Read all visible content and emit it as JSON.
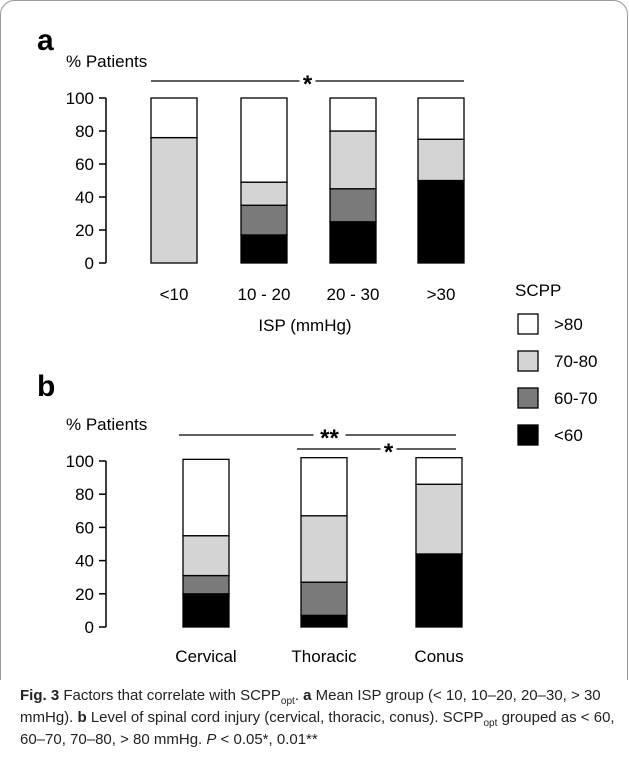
{
  "chart_data": [
    {
      "type": "bar",
      "stacked": true,
      "panel_label": "a",
      "ylabel": "% Patients",
      "xlabel": "ISP (mmHg)",
      "ylim": [
        0,
        100
      ],
      "yticks": [
        0,
        20,
        40,
        60,
        80,
        100
      ],
      "categories": [
        "<10",
        "10 - 20",
        "20 - 30",
        ">30"
      ],
      "series": [
        {
          "name": "<60",
          "color": "#000000",
          "values": [
            0,
            17,
            25,
            50
          ]
        },
        {
          "name": "60-70",
          "color": "#7a7a7a",
          "values": [
            0,
            18,
            20,
            0
          ]
        },
        {
          "name": "70-80",
          "color": "#d4d4d4",
          "values": [
            76,
            14,
            35,
            25
          ]
        },
        {
          "name": ">80",
          "color": "#ffffff",
          "values": [
            24,
            51,
            20,
            25
          ]
        }
      ],
      "annotations": [
        {
          "text": "*",
          "from": "<10",
          "to": ">30"
        }
      ]
    },
    {
      "type": "bar",
      "stacked": true,
      "panel_label": "b",
      "ylabel": "% Patients",
      "xlabel": "",
      "ylim": [
        0,
        100
      ],
      "yticks": [
        0,
        20,
        40,
        60,
        80,
        100
      ],
      "categories": [
        "Cervical",
        "Thoracic",
        "Conus"
      ],
      "series": [
        {
          "name": "<60",
          "color": "#000000",
          "values": [
            20,
            7,
            44
          ]
        },
        {
          "name": "60-70",
          "color": "#7a7a7a",
          "values": [
            11,
            20,
            0
          ]
        },
        {
          "name": "70-80",
          "color": "#d4d4d4",
          "values": [
            24,
            40,
            42
          ]
        },
        {
          "name": ">80",
          "color": "#ffffff",
          "values": [
            46,
            35,
            16
          ]
        }
      ],
      "annotations": [
        {
          "text": "**",
          "from": "Cervical",
          "to": "Conus"
        },
        {
          "text": "*",
          "from": "Thoracic",
          "to": "Conus"
        }
      ]
    }
  ],
  "legend": {
    "title": "SCPP",
    "items": [
      {
        "label": ">80",
        "color": "#ffffff"
      },
      {
        "label": "70-80",
        "color": "#d4d4d4"
      },
      {
        "label": "60-70",
        "color": "#7a7a7a"
      },
      {
        "label": "<60",
        "color": "#000000"
      }
    ]
  },
  "caption": {
    "fig_label": "Fig. 3",
    "t1": "  Factors that correlate with SCPP",
    "t1_sub": "opt",
    "t1_end": ". ",
    "a_label": "a",
    "t2": " Mean ISP group (< 10, 10–20, 20–30, > 30 mmHg). ",
    "b_label": "b",
    "t3": " Level of spinal cord injury (cervical, thoracic, conus). SCPP",
    "t3_sub": "opt",
    "t3_end": " grouped as < 60, 60–70, 70–80, > 80 mmHg. ",
    "t4_p": "P",
    "t4": " < 0.05*, 0.01**"
  }
}
